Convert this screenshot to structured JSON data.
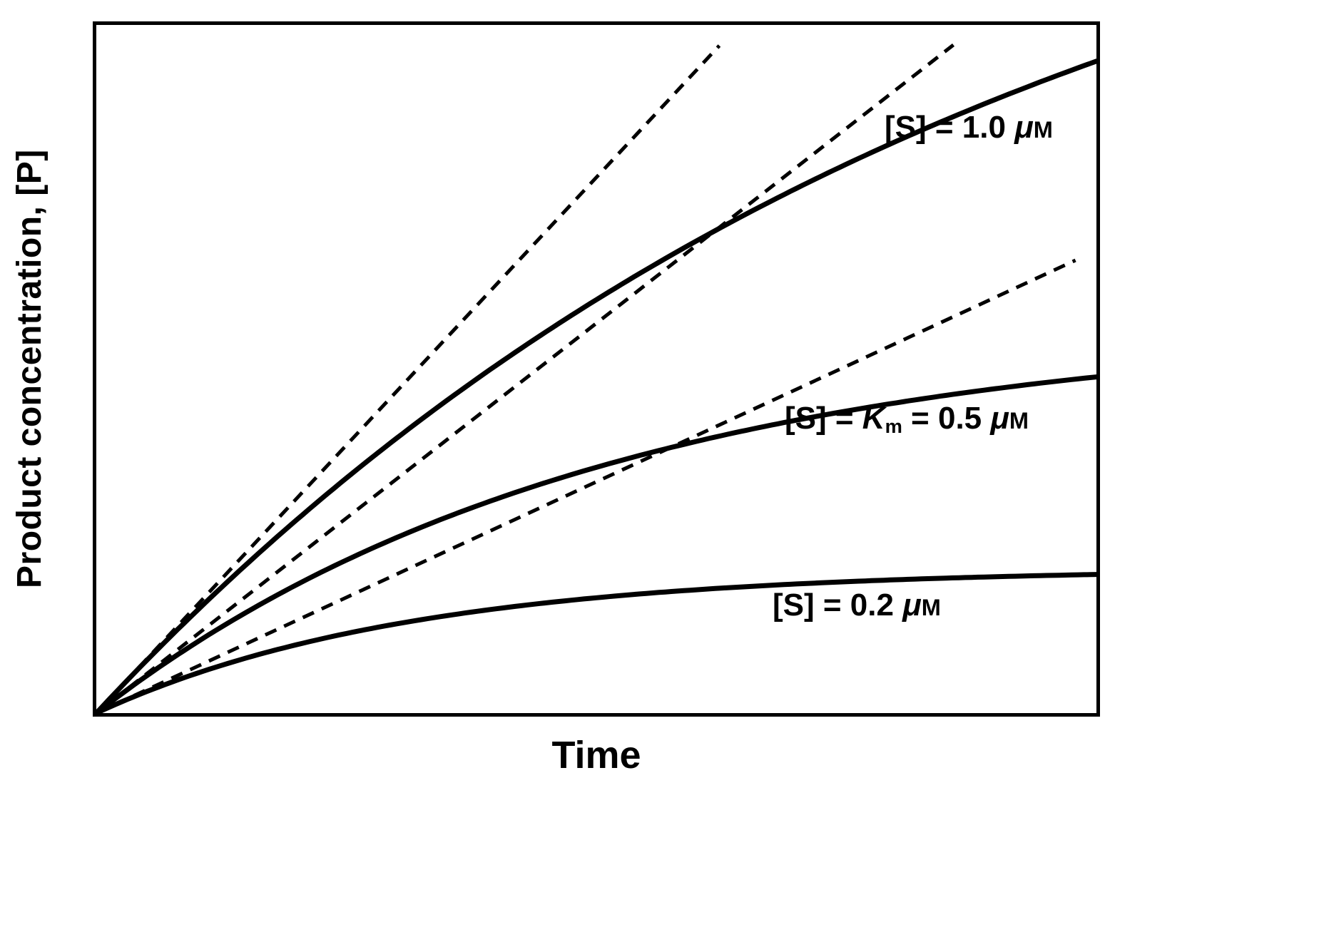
{
  "chart_data": {
    "type": "line",
    "title": "Enzyme kinetics progress curves: product formed over time at three substrate concentrations, with dashed initial-velocity tangents",
    "xlabel": "Time",
    "ylabel": "Product concentration, [P]",
    "x_range": [
      0,
      1
    ],
    "y_range": [
      0,
      1
    ],
    "grid": false,
    "axes_numeric": false,
    "legend_position": "labels-on-plot",
    "stroke_color": "#000000",
    "background_color": "#ffffff",
    "series": [
      {
        "name": "[S] = 1.0 μM",
        "style": "solid",
        "model": "P = Pmax·(1 − e^(−k·t))",
        "pmax": 1.42,
        "k": 1.1,
        "initial_slope": 1.56,
        "x": [
          0,
          0.1,
          0.2,
          0.3,
          0.4,
          0.5,
          0.6,
          0.7,
          0.8,
          0.9,
          1.0
        ],
        "y": [
          0,
          0.148,
          0.28,
          0.399,
          0.506,
          0.601,
          0.686,
          0.763,
          0.831,
          0.892,
          0.947
        ]
      },
      {
        "name": "[S] = Km = 0.5 μM",
        "style": "solid",
        "model": "P = Pmax·(1 − e^(−k·t))",
        "pmax": 0.565,
        "k": 2.0,
        "initial_slope": 1.13,
        "x": [
          0,
          0.1,
          0.2,
          0.3,
          0.4,
          0.5,
          0.6,
          0.7,
          0.8,
          0.9,
          1.0
        ],
        "y": [
          0,
          0.102,
          0.186,
          0.255,
          0.311,
          0.357,
          0.395,
          0.426,
          0.451,
          0.472,
          0.489
        ]
      },
      {
        "name": "[S] = 0.2 μM",
        "style": "solid",
        "model": "P = Pmax·(1 − e^(−k·t))",
        "pmax": 0.21,
        "k": 3.2,
        "initial_slope": 0.672,
        "x": [
          0,
          0.1,
          0.2,
          0.3,
          0.4,
          0.5,
          0.6,
          0.7,
          0.8,
          0.9,
          1.0
        ],
        "y": [
          0,
          0.058,
          0.099,
          0.13,
          0.152,
          0.168,
          0.179,
          0.188,
          0.194,
          0.198,
          0.201
        ]
      }
    ],
    "tangents": [
      {
        "name": "initial-velocity tangent, [S] = 1.0 μM",
        "style": "dashed",
        "slope": 1.56,
        "x1": 0,
        "y1": 0,
        "x2": 0.623,
        "y2": 0.97
      },
      {
        "name": "initial-velocity tangent, [S] = 0.5 μM",
        "style": "dashed",
        "slope": 1.13,
        "x1": 0,
        "y1": 0,
        "x2": 0.857,
        "y2": 0.971
      },
      {
        "name": "initial-velocity tangent, [S] = 0.2 μM",
        "style": "dashed",
        "slope": 0.672,
        "x1": 0,
        "y1": 0,
        "x2": 0.979,
        "y2": 0.658
      }
    ],
    "curve_labels": [
      {
        "text": "[S] = 1.0 μM",
        "prefix": "[S] = 1.0 ",
        "mu": "μ",
        "unit": "M"
      },
      {
        "text": "[S] = Km = 0.5 μM",
        "prefix": "[S] = ",
        "K": "K",
        "sub": "m",
        "mid": " = 0.5 ",
        "mu": "μ",
        "unit": "M"
      },
      {
        "text": "[S] = 0.2 μM",
        "prefix": "[S] = 0.2 ",
        "mu": "μ",
        "unit": "M"
      }
    ]
  }
}
